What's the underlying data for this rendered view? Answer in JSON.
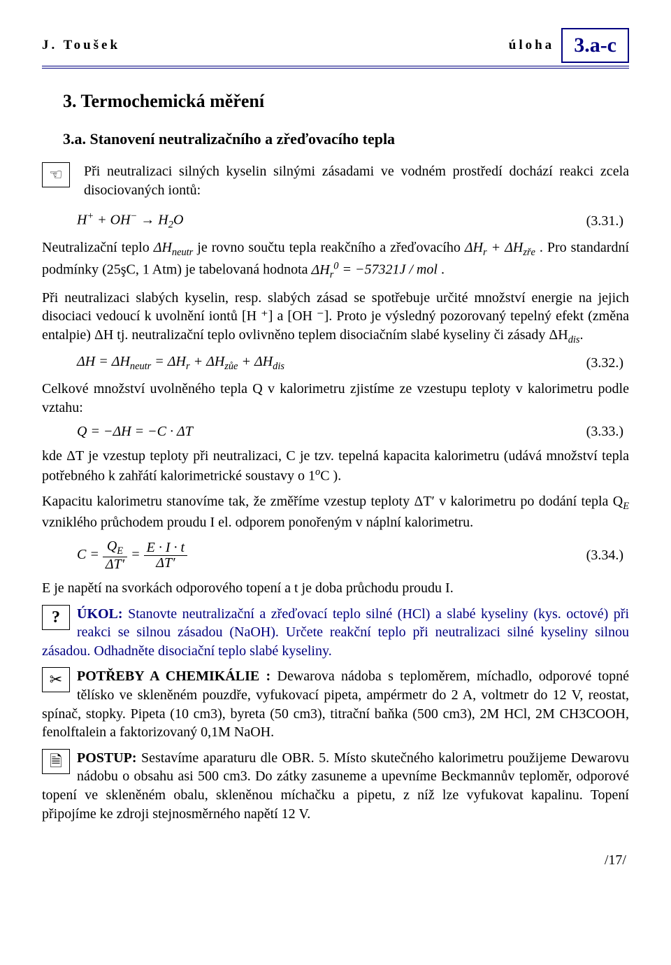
{
  "header": {
    "author": "J. Toušek",
    "uloha": "úloha",
    "code": "3.a-c"
  },
  "titles": {
    "main": "3.  Termochemická měření",
    "sub": "3.a.   Stanovení neutralizačního a zřeďovacího tepla"
  },
  "icons": {
    "hand": "☜",
    "question": "?",
    "scissors": "✂",
    "doc": "🗎"
  },
  "paragraphs": {
    "p1": "Při neutralizaci silných kyselin silnými zásadami ve vodném prostředí dochází reakci zcela disociovaných iontů:",
    "p2a": "Neutralizační teplo ",
    "p2b": " je rovno součtu tepla reakčního a zřeďovacího ",
    "p2c": ". Pro standardní podmínky (25şC, 1 Atm) je tabelovaná hodnota ",
    "p2d": ".",
    "p3": "Při neutralizaci slabých kyselin, resp. slabých zásad se spotřebuje určité množství energie na jejich disociaci vedoucí k uvolnění iontů [H ⁺] a [OH ⁻]. Proto je výsledný pozorovaný tepelný efekt (změna entalpie) ΔH tj. neutralizační teplo ovlivněno teplem disociačním slabé kyseliny či zásady ΔH",
    "p3_dis": "dis",
    "p3_end": ".",
    "p4": "Celkové množství uvolněného tepla Q v kalorimetru zjistíme ze vzestupu teploty v kalorimetru podle vztahu:",
    "p5a": "kde ΔT je vzestup teploty při neutralizaci, C je tzv. tepelná kapacita kalorimetru (udává množství tepla potřebného k zahřátí kalorimetrické soustavy o 1",
    "p5b": "C ).",
    "p6": "Kapacitu kalorimetru stanovíme tak, že změříme vzestup teploty ΔT′ v kalorimetru po dodání tepla Q",
    "p6_sub": "E",
    "p6b": " vzniklého průchodem proudu I el. odporem ponořeným v náplní kalorimetru.",
    "p7": "E je napětí na svorkách odporového topení a t je doba průchodu proudu I.",
    "ukol_label": "ÚKOL:",
    "ukol": " Stanovte neutralizační a zřeďovací teplo silné (HCl) a slabé kyseliny (kys. octové) při reakci se silnou zásadou (NaOH). Určete reakční teplo při neutralizaci silné kyseliny silnou zásadou. Odhadněte disociační teplo slabé kyseliny.",
    "potreby_label": "POTŘEBY A CHEMIKÁLIE :",
    "potreby": " Dewarova nádoba s teploměrem, míchadlo, odporové topné tělísko ve skleněném pouzdře, vyfukovací pipeta, ampérmetr do 2 A, voltmetr do 12 V, reostat, spínač, stopky. Pipeta (10 cm3), byreta (50 cm3), titrační baňka (500 cm3), 2M HCl, 2M CH3COOH, fenolftalein a faktorizovaný 0,1M NaOH.",
    "postup_label": "POSTUP:",
    "postup": " Sestavíme aparaturu dle OBR. 5. Místo skutečného kalorimetru použijeme Dewarovu nádobu o obsahu asi 500 cm3. Do zátky zasuneme a upevníme Beckmannův teploměr, odporové topení ve skleněném obalu, skleněnou míchačku a pipetu, z níž lze vyfukovat kapalinu. Topení připojíme ke zdroji stejnosměrného napětí 12 V."
  },
  "equations": {
    "eq31_num": "(3.31.)",
    "eq32_num": "(3.32.)",
    "eq33_num": "(3.33.)",
    "eq34_num": "(3.34.)",
    "dH_neutr": "ΔH",
    "neutr": "neutr",
    "dHr_plus_dHzre_a": "ΔH",
    "r": "r",
    "plus": " + ",
    "zre": "zře",
    "dHr0_val": " = −57321J / mol",
    "zue": "zůe",
    "dis": "dis"
  },
  "colors": {
    "accent": "#000080"
  },
  "page_number": "/17/"
}
